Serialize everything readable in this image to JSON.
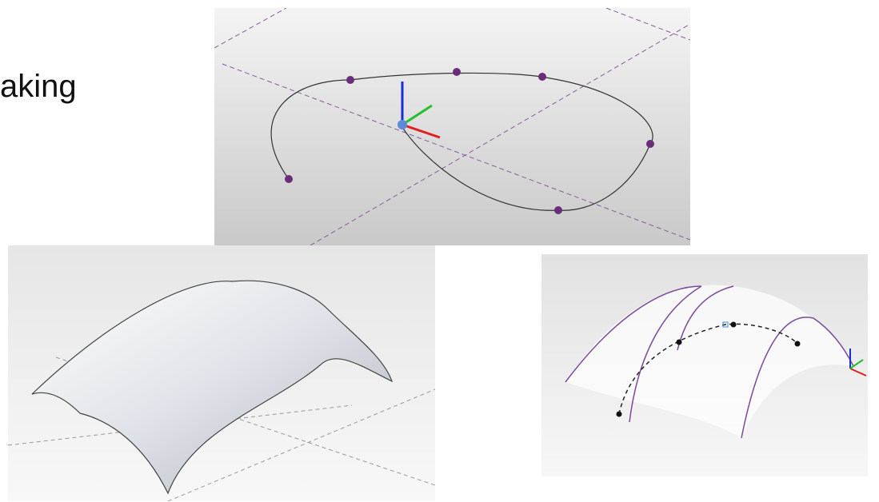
{
  "heading": "aking"
}
